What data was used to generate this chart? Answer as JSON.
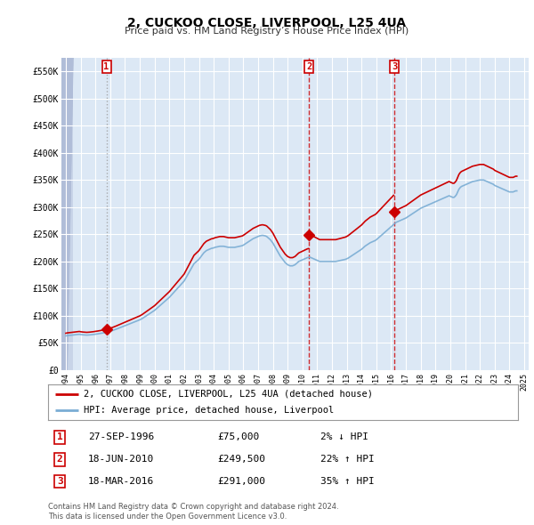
{
  "title": "2, CUCKOO CLOSE, LIVERPOOL, L25 4UA",
  "subtitle": "Price paid vs. HM Land Registry’s House Price Index (HPI)",
  "property_label": "2, CUCKOO CLOSE, LIVERPOOL, L25 4UA (detached house)",
  "hpi_label": "HPI: Average price, detached house, Liverpool",
  "property_color": "#cc0000",
  "hpi_color": "#7aadd4",
  "background_color": "#dce8f5",
  "grid_color": "#ffffff",
  "ylim": [
    0,
    575000
  ],
  "yticks": [
    0,
    50000,
    100000,
    150000,
    200000,
    250000,
    300000,
    350000,
    400000,
    450000,
    500000,
    550000
  ],
  "ytick_labels": [
    "£0",
    "£50K",
    "£100K",
    "£150K",
    "£200K",
    "£250K",
    "£300K",
    "£350K",
    "£400K",
    "£450K",
    "£500K",
    "£550K"
  ],
  "sale_events": [
    {
      "num": 1,
      "date": "1996-09-27",
      "price": 75000,
      "pct": "2%",
      "dir": "↓",
      "x_year": 1996.74
    },
    {
      "num": 2,
      "date": "2010-06-18",
      "price": 249500,
      "pct": "22%",
      "dir": "↑",
      "x_year": 2010.46
    },
    {
      "num": 3,
      "date": "2016-03-18",
      "price": 291000,
      "pct": "35%",
      "dir": "↑",
      "x_year": 2016.21
    }
  ],
  "table_rows": [
    [
      "1",
      "27-SEP-1996",
      "£75,000",
      "2% ↓ HPI"
    ],
    [
      "2",
      "18-JUN-2010",
      "£249,500",
      "22% ↑ HPI"
    ],
    [
      "3",
      "18-MAR-2016",
      "£291,000",
      "35% ↑ HPI"
    ]
  ],
  "footer": "Contains HM Land Registry data © Crown copyright and database right 2024.\nThis data is licensed under the Open Government Licence v3.0.",
  "hpi_data": [
    [
      1994.0,
      63000
    ],
    [
      1994.083,
      63500
    ],
    [
      1994.167,
      63800
    ],
    [
      1994.25,
      64000
    ],
    [
      1994.333,
      64200
    ],
    [
      1994.417,
      64500
    ],
    [
      1994.5,
      64800
    ],
    [
      1994.583,
      65000
    ],
    [
      1994.667,
      65200
    ],
    [
      1994.75,
      65500
    ],
    [
      1994.833,
      65800
    ],
    [
      1994.917,
      66000
    ],
    [
      1995.0,
      65500
    ],
    [
      1995.083,
      65200
    ],
    [
      1995.167,
      65000
    ],
    [
      1995.25,
      64800
    ],
    [
      1995.333,
      64600
    ],
    [
      1995.417,
      64500
    ],
    [
      1995.5,
      64600
    ],
    [
      1995.583,
      64800
    ],
    [
      1995.667,
      65000
    ],
    [
      1995.75,
      65200
    ],
    [
      1995.833,
      65500
    ],
    [
      1995.917,
      65800
    ],
    [
      1996.0,
      66000
    ],
    [
      1996.083,
      66400
    ],
    [
      1996.167,
      66800
    ],
    [
      1996.25,
      67200
    ],
    [
      1996.333,
      67600
    ],
    [
      1996.417,
      68000
    ],
    [
      1996.5,
      68400
    ],
    [
      1996.583,
      68800
    ],
    [
      1996.667,
      69200
    ],
    [
      1996.75,
      69600
    ],
    [
      1996.833,
      70200
    ],
    [
      1996.917,
      70800
    ],
    [
      1997.0,
      71500
    ],
    [
      1997.083,
      72200
    ],
    [
      1997.167,
      73000
    ],
    [
      1997.25,
      73800
    ],
    [
      1997.333,
      74600
    ],
    [
      1997.417,
      75500
    ],
    [
      1997.5,
      76400
    ],
    [
      1997.583,
      77300
    ],
    [
      1997.667,
      78200
    ],
    [
      1997.75,
      79100
    ],
    [
      1997.833,
      80000
    ],
    [
      1997.917,
      80900
    ],
    [
      1998.0,
      81800
    ],
    [
      1998.083,
      82700
    ],
    [
      1998.167,
      83600
    ],
    [
      1998.25,
      84500
    ],
    [
      1998.333,
      85400
    ],
    [
      1998.417,
      86300
    ],
    [
      1998.5,
      87200
    ],
    [
      1998.583,
      88100
    ],
    [
      1998.667,
      89000
    ],
    [
      1998.75,
      89900
    ],
    [
      1998.833,
      90800
    ],
    [
      1998.917,
      91700
    ],
    [
      1999.0,
      92600
    ],
    [
      1999.083,
      93800
    ],
    [
      1999.167,
      95000
    ],
    [
      1999.25,
      96500
    ],
    [
      1999.333,
      98000
    ],
    [
      1999.417,
      99500
    ],
    [
      1999.5,
      101000
    ],
    [
      1999.583,
      102500
    ],
    [
      1999.667,
      104000
    ],
    [
      1999.75,
      105500
    ],
    [
      1999.833,
      107000
    ],
    [
      1999.917,
      108500
    ],
    [
      2000.0,
      110000
    ],
    [
      2000.083,
      112000
    ],
    [
      2000.167,
      114000
    ],
    [
      2000.25,
      116000
    ],
    [
      2000.333,
      118000
    ],
    [
      2000.417,
      120000
    ],
    [
      2000.5,
      122000
    ],
    [
      2000.583,
      124000
    ],
    [
      2000.667,
      126000
    ],
    [
      2000.75,
      128000
    ],
    [
      2000.833,
      130000
    ],
    [
      2000.917,
      132000
    ],
    [
      2001.0,
      134000
    ],
    [
      2001.083,
      136500
    ],
    [
      2001.167,
      139000
    ],
    [
      2001.25,
      141500
    ],
    [
      2001.333,
      144000
    ],
    [
      2001.417,
      146500
    ],
    [
      2001.5,
      149000
    ],
    [
      2001.583,
      151500
    ],
    [
      2001.667,
      154000
    ],
    [
      2001.75,
      156500
    ],
    [
      2001.833,
      159000
    ],
    [
      2001.917,
      161500
    ],
    [
      2002.0,
      164000
    ],
    [
      2002.083,
      168000
    ],
    [
      2002.167,
      172000
    ],
    [
      2002.25,
      176000
    ],
    [
      2002.333,
      180000
    ],
    [
      2002.417,
      184000
    ],
    [
      2002.5,
      188000
    ],
    [
      2002.583,
      192000
    ],
    [
      2002.667,
      196000
    ],
    [
      2002.75,
      198000
    ],
    [
      2002.833,
      200000
    ],
    [
      2002.917,
      202000
    ],
    [
      2003.0,
      204000
    ],
    [
      2003.083,
      207000
    ],
    [
      2003.167,
      210000
    ],
    [
      2003.25,
      213000
    ],
    [
      2003.333,
      216000
    ],
    [
      2003.417,
      218000
    ],
    [
      2003.5,
      220000
    ],
    [
      2003.583,
      221000
    ],
    [
      2003.667,
      222000
    ],
    [
      2003.75,
      223000
    ],
    [
      2003.833,
      224000
    ],
    [
      2003.917,
      224500
    ],
    [
      2004.0,
      225000
    ],
    [
      2004.083,
      226000
    ],
    [
      2004.167,
      226500
    ],
    [
      2004.25,
      227000
    ],
    [
      2004.333,
      227500
    ],
    [
      2004.417,
      228000
    ],
    [
      2004.5,
      228000
    ],
    [
      2004.583,
      228000
    ],
    [
      2004.667,
      228000
    ],
    [
      2004.75,
      227500
    ],
    [
      2004.833,
      227000
    ],
    [
      2004.917,
      226500
    ],
    [
      2005.0,
      226000
    ],
    [
      2005.083,
      226000
    ],
    [
      2005.167,
      226000
    ],
    [
      2005.25,
      226000
    ],
    [
      2005.333,
      226000
    ],
    [
      2005.417,
      226000
    ],
    [
      2005.5,
      226500
    ],
    [
      2005.583,
      227000
    ],
    [
      2005.667,
      227500
    ],
    [
      2005.75,
      228000
    ],
    [
      2005.833,
      228500
    ],
    [
      2005.917,
      229000
    ],
    [
      2006.0,
      230000
    ],
    [
      2006.083,
      231500
    ],
    [
      2006.167,
      233000
    ],
    [
      2006.25,
      234500
    ],
    [
      2006.333,
      236000
    ],
    [
      2006.417,
      237500
    ],
    [
      2006.5,
      239000
    ],
    [
      2006.583,
      240500
    ],
    [
      2006.667,
      242000
    ],
    [
      2006.75,
      243000
    ],
    [
      2006.833,
      244000
    ],
    [
      2006.917,
      245000
    ],
    [
      2007.0,
      246000
    ],
    [
      2007.083,
      247000
    ],
    [
      2007.167,
      247500
    ],
    [
      2007.25,
      248000
    ],
    [
      2007.333,
      248000
    ],
    [
      2007.417,
      247500
    ],
    [
      2007.5,
      247000
    ],
    [
      2007.583,
      246000
    ],
    [
      2007.667,
      244000
    ],
    [
      2007.75,
      242000
    ],
    [
      2007.833,
      240000
    ],
    [
      2007.917,
      237000
    ],
    [
      2008.0,
      234000
    ],
    [
      2008.083,
      230000
    ],
    [
      2008.167,
      226000
    ],
    [
      2008.25,
      222000
    ],
    [
      2008.333,
      218000
    ],
    [
      2008.417,
      214000
    ],
    [
      2008.5,
      210000
    ],
    [
      2008.583,
      207000
    ],
    [
      2008.667,
      204000
    ],
    [
      2008.75,
      201000
    ],
    [
      2008.833,
      198000
    ],
    [
      2008.917,
      196000
    ],
    [
      2009.0,
      194000
    ],
    [
      2009.083,
      193000
    ],
    [
      2009.167,
      192000
    ],
    [
      2009.25,
      192000
    ],
    [
      2009.333,
      192000
    ],
    [
      2009.417,
      193000
    ],
    [
      2009.5,
      194000
    ],
    [
      2009.583,
      196000
    ],
    [
      2009.667,
      198000
    ],
    [
      2009.75,
      200000
    ],
    [
      2009.833,
      201000
    ],
    [
      2009.917,
      202000
    ],
    [
      2010.0,
      203000
    ],
    [
      2010.083,
      204000
    ],
    [
      2010.167,
      205000
    ],
    [
      2010.25,
      206000
    ],
    [
      2010.333,
      207000
    ],
    [
      2010.417,
      207500
    ],
    [
      2010.5,
      208000
    ],
    [
      2010.583,
      207000
    ],
    [
      2010.667,
      206000
    ],
    [
      2010.75,
      205000
    ],
    [
      2010.833,
      204000
    ],
    [
      2010.917,
      203000
    ],
    [
      2011.0,
      202000
    ],
    [
      2011.083,
      201000
    ],
    [
      2011.167,
      200000
    ],
    [
      2011.25,
      200000
    ],
    [
      2011.333,
      200000
    ],
    [
      2011.417,
      200000
    ],
    [
      2011.5,
      200000
    ],
    [
      2011.583,
      200000
    ],
    [
      2011.667,
      200000
    ],
    [
      2011.75,
      200000
    ],
    [
      2011.833,
      200000
    ],
    [
      2011.917,
      200000
    ],
    [
      2012.0,
      200000
    ],
    [
      2012.083,
      200000
    ],
    [
      2012.167,
      200000
    ],
    [
      2012.25,
      200000
    ],
    [
      2012.333,
      200500
    ],
    [
      2012.417,
      201000
    ],
    [
      2012.5,
      201500
    ],
    [
      2012.583,
      202000
    ],
    [
      2012.667,
      202500
    ],
    [
      2012.75,
      203000
    ],
    [
      2012.833,
      203500
    ],
    [
      2012.917,
      204000
    ],
    [
      2013.0,
      205000
    ],
    [
      2013.083,
      206000
    ],
    [
      2013.167,
      207500
    ],
    [
      2013.25,
      209000
    ],
    [
      2013.333,
      210500
    ],
    [
      2013.417,
      212000
    ],
    [
      2013.5,
      213500
    ],
    [
      2013.583,
      215000
    ],
    [
      2013.667,
      216500
    ],
    [
      2013.75,
      218000
    ],
    [
      2013.833,
      219500
    ],
    [
      2013.917,
      221000
    ],
    [
      2014.0,
      222500
    ],
    [
      2014.083,
      224500
    ],
    [
      2014.167,
      226500
    ],
    [
      2014.25,
      228500
    ],
    [
      2014.333,
      230000
    ],
    [
      2014.417,
      231500
    ],
    [
      2014.5,
      233000
    ],
    [
      2014.583,
      234500
    ],
    [
      2014.667,
      235500
    ],
    [
      2014.75,
      236500
    ],
    [
      2014.833,
      237500
    ],
    [
      2014.917,
      238500
    ],
    [
      2015.0,
      240000
    ],
    [
      2015.083,
      242000
    ],
    [
      2015.167,
      244000
    ],
    [
      2015.25,
      246000
    ],
    [
      2015.333,
      248000
    ],
    [
      2015.417,
      250000
    ],
    [
      2015.5,
      252000
    ],
    [
      2015.583,
      254000
    ],
    [
      2015.667,
      256000
    ],
    [
      2015.75,
      258000
    ],
    [
      2015.833,
      260000
    ],
    [
      2015.917,
      262000
    ],
    [
      2016.0,
      264000
    ],
    [
      2016.083,
      266000
    ],
    [
      2016.167,
      268000
    ],
    [
      2016.25,
      270000
    ],
    [
      2016.333,
      272000
    ],
    [
      2016.417,
      273000
    ],
    [
      2016.5,
      274000
    ],
    [
      2016.583,
      275000
    ],
    [
      2016.667,
      276000
    ],
    [
      2016.75,
      277000
    ],
    [
      2016.833,
      278000
    ],
    [
      2016.917,
      279000
    ],
    [
      2017.0,
      280000
    ],
    [
      2017.083,
      281500
    ],
    [
      2017.167,
      283000
    ],
    [
      2017.25,
      284500
    ],
    [
      2017.333,
      286000
    ],
    [
      2017.417,
      287500
    ],
    [
      2017.5,
      289000
    ],
    [
      2017.583,
      290500
    ],
    [
      2017.667,
      292000
    ],
    [
      2017.75,
      293500
    ],
    [
      2017.833,
      295000
    ],
    [
      2017.917,
      296500
    ],
    [
      2018.0,
      298000
    ],
    [
      2018.083,
      299000
    ],
    [
      2018.167,
      300000
    ],
    [
      2018.25,
      301000
    ],
    [
      2018.333,
      302000
    ],
    [
      2018.417,
      303000
    ],
    [
      2018.5,
      304000
    ],
    [
      2018.583,
      305000
    ],
    [
      2018.667,
      306000
    ],
    [
      2018.75,
      307000
    ],
    [
      2018.833,
      308000
    ],
    [
      2018.917,
      309000
    ],
    [
      2019.0,
      310000
    ],
    [
      2019.083,
      311000
    ],
    [
      2019.167,
      312000
    ],
    [
      2019.25,
      313000
    ],
    [
      2019.333,
      314000
    ],
    [
      2019.417,
      315000
    ],
    [
      2019.5,
      316000
    ],
    [
      2019.583,
      317000
    ],
    [
      2019.667,
      318000
    ],
    [
      2019.75,
      319000
    ],
    [
      2019.833,
      320000
    ],
    [
      2019.917,
      321000
    ],
    [
      2020.0,
      320000
    ],
    [
      2020.083,
      319000
    ],
    [
      2020.167,
      318000
    ],
    [
      2020.25,
      318000
    ],
    [
      2020.333,
      320000
    ],
    [
      2020.417,
      323000
    ],
    [
      2020.5,
      328000
    ],
    [
      2020.583,
      333000
    ],
    [
      2020.667,
      336000
    ],
    [
      2020.75,
      338000
    ],
    [
      2020.833,
      339000
    ],
    [
      2020.917,
      340000
    ],
    [
      2021.0,
      341000
    ],
    [
      2021.083,
      342000
    ],
    [
      2021.167,
      343000
    ],
    [
      2021.25,
      344000
    ],
    [
      2021.333,
      345000
    ],
    [
      2021.417,
      346000
    ],
    [
      2021.5,
      347000
    ],
    [
      2021.583,
      347500
    ],
    [
      2021.667,
      348000
    ],
    [
      2021.75,
      348500
    ],
    [
      2021.833,
      349000
    ],
    [
      2021.917,
      349500
    ],
    [
      2022.0,
      350000
    ],
    [
      2022.083,
      350000
    ],
    [
      2022.167,
      350000
    ],
    [
      2022.25,
      350000
    ],
    [
      2022.333,
      349000
    ],
    [
      2022.417,
      348000
    ],
    [
      2022.5,
      347000
    ],
    [
      2022.583,
      346000
    ],
    [
      2022.667,
      345000
    ],
    [
      2022.75,
      344000
    ],
    [
      2022.833,
      343000
    ],
    [
      2022.917,
      342000
    ],
    [
      2023.0,
      340000
    ],
    [
      2023.083,
      339000
    ],
    [
      2023.167,
      338000
    ],
    [
      2023.25,
      337000
    ],
    [
      2023.333,
      336000
    ],
    [
      2023.417,
      335000
    ],
    [
      2023.5,
      334000
    ],
    [
      2023.583,
      333000
    ],
    [
      2023.667,
      332000
    ],
    [
      2023.75,
      331000
    ],
    [
      2023.833,
      330000
    ],
    [
      2023.917,
      329000
    ],
    [
      2024.0,
      328000
    ],
    [
      2024.083,
      328000
    ],
    [
      2024.167,
      328000
    ],
    [
      2024.25,
      328000
    ],
    [
      2024.333,
      329000
    ],
    [
      2024.417,
      330000
    ],
    [
      2024.5,
      330000
    ]
  ],
  "xlim": [
    1993.7,
    2025.3
  ],
  "hatch_end_x": 1994.0,
  "sale1_year": 1996.74,
  "sale1_price": 75000,
  "sale2_year": 2010.46,
  "sale2_price": 249500,
  "sale3_year": 2016.21,
  "sale3_price": 291000
}
